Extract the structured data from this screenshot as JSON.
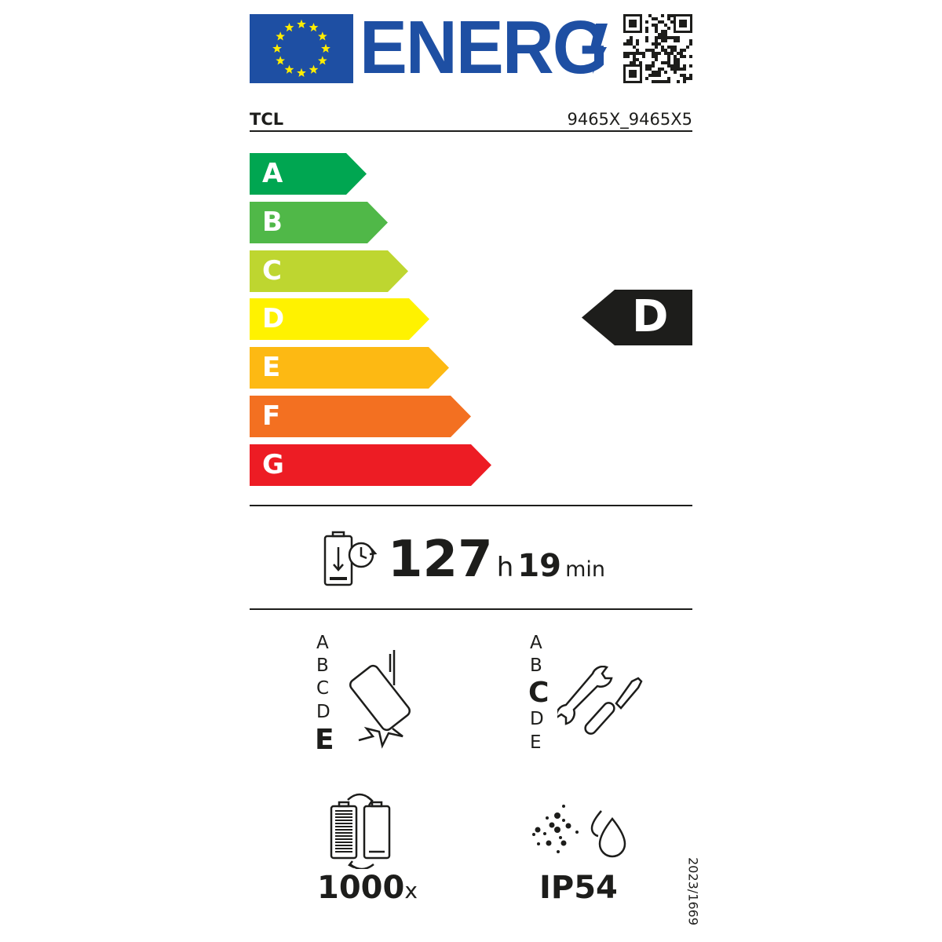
{
  "header": {
    "logo_text": "ENERG",
    "qr_code": "qr-code",
    "supplier": "TCL",
    "model": "9465X_9465X5"
  },
  "colors": {
    "eu_blue": "#1e4fa3",
    "eu_star": "#ffed00",
    "A": "#00a651",
    "B": "#50b848",
    "C": "#bed630",
    "D": "#fff200",
    "E": "#fdb913",
    "F": "#f37021",
    "G": "#ed1c24"
  },
  "energy_scale": {
    "classes": [
      "A",
      "B",
      "C",
      "D",
      "E",
      "F",
      "G"
    ],
    "rating": "D"
  },
  "battery_endurance": {
    "hours": "127",
    "hours_unit": "h",
    "minutes": "19",
    "minutes_unit": "min"
  },
  "drop_resistance": {
    "classes": [
      "A",
      "B",
      "C",
      "D",
      "E"
    ],
    "rating": "E"
  },
  "repairability": {
    "classes": [
      "A",
      "B",
      "C",
      "D",
      "E"
    ],
    "rating": "C"
  },
  "battery_cycles": {
    "value": "1000",
    "unit": "x"
  },
  "ingress_protection": {
    "value": "IP54"
  },
  "regulation": "2023/1669"
}
